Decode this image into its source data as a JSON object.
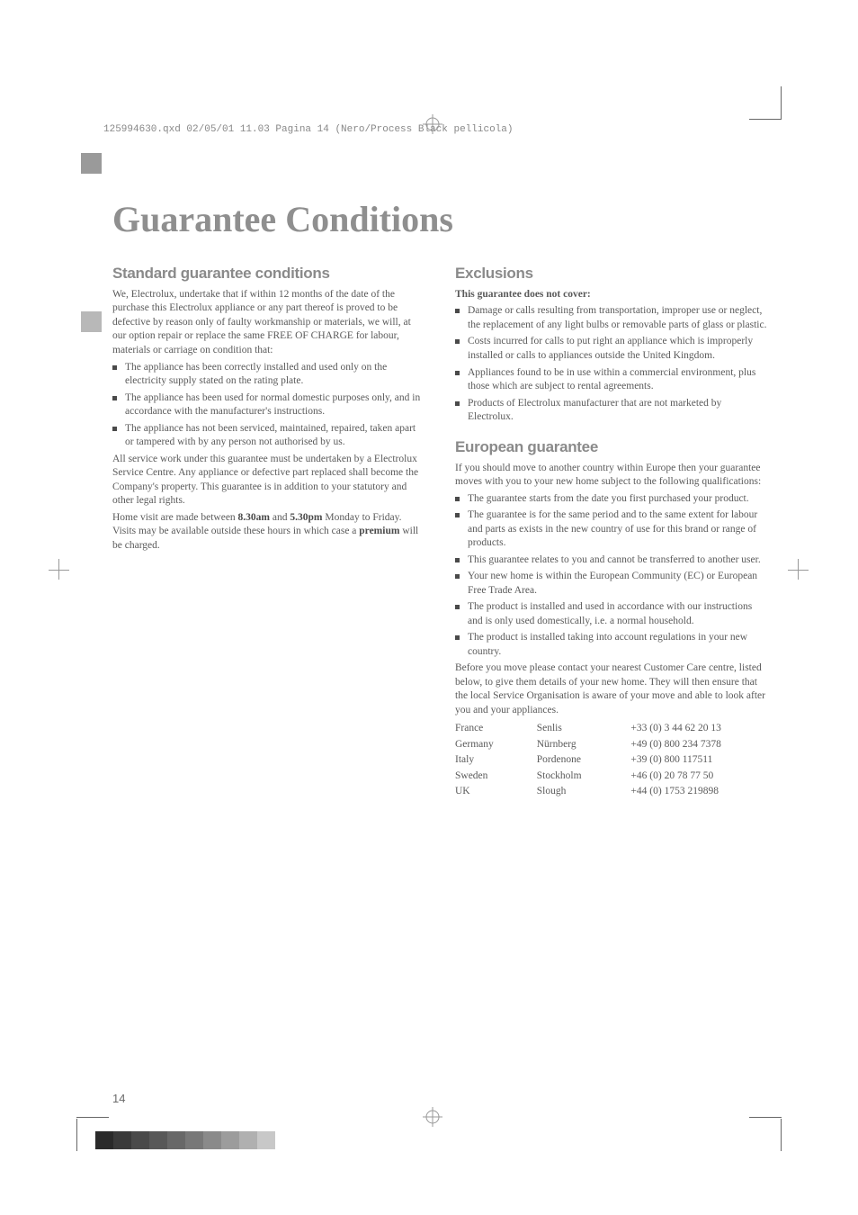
{
  "print_header": "125994630.qxd  02/05/01  11.03  Pagina 14   (Nero/Process Black pellicola)",
  "title": "Guarantee Conditions",
  "left": {
    "heading": "Standard guarantee conditions",
    "p1": "We, Electrolux, undertake that if within 12 months of the date of the purchase this Electrolux appliance or any part thereof is proved to be defective by reason only of faulty workmanship or materials, we will, at our option repair or replace the same FREE OF CHARGE for labour, materials or carriage on condition that:",
    "bullets": [
      "The appliance has been correctly installed and used only on the electricity supply stated on the rating plate.",
      "The appliance has been used for normal domestic purposes only, and in accordance with the manufacturer's instructions.",
      "The appliance has not been serviced, maintained, repaired, taken apart or tampered with by any person not authorised by us."
    ],
    "p2": "All service work under this guarantee must be undertaken by a Electrolux Service Centre. Any appliance or defective part replaced shall become the Company's property. This guarantee is in addition to your statutory and other legal rights.",
    "p3_a": "Home visit are made between ",
    "p3_b": "8.30am",
    "p3_c": " and ",
    "p3_d": "5.30pm",
    "p3_e": " Monday to Friday. Visits may be available outside these hours in which case a ",
    "p3_f": "premium",
    "p3_g": " will be charged."
  },
  "right": {
    "h_excl": "Exclusions",
    "excl_sub": "This guarantee does not cover:",
    "excl_bullets": [
      "Damage or calls resulting from transportation, improper use or neglect, the replacement of any light bulbs or removable parts of glass or plastic.",
      "Costs incurred for calls to put right an appliance which is improperly installed or calls to appliances outside the United Kingdom.",
      "Appliances found to be in use within a commercial environment, plus those which are subject to rental agreements.",
      "Products of Electrolux manufacturer that are not marketed by Electrolux."
    ],
    "h_eu": "European guarantee",
    "eu_p": "If you should move to another country within Europe then your guarantee moves with you to your new home subject to the following qualifications:",
    "eu_bullets": [
      "The guarantee starts from the date you first purchased your product.",
      "The guarantee is for the same period and to the same extent for labour and parts as exists in the new country of use for this brand or range of products.",
      "This guarantee relates to you and cannot be transferred to another user.",
      "Your new home is within the European Community (EC) or European Free Trade Area.",
      "The product is installed and used in accordance with our instructions and is only used domestically, i.e. a normal household.",
      "The product is installed taking into account regulations in your new country."
    ],
    "eu_p2": "Before you move please contact your nearest Customer Care centre, listed below, to give them details of your new home. They will then ensure that the local Service Organisation is aware of your move and able to look after you and your appliances.",
    "contacts": [
      [
        "France",
        "Senlis",
        "+33 (0) 3 44 62 20 13"
      ],
      [
        "Germany",
        "Nürnberg",
        "+49 (0) 800 234 7378"
      ],
      [
        "Italy",
        "Pordenone",
        "+39 (0) 800 117511"
      ],
      [
        "Sweden",
        "Stockholm",
        "+46 (0) 20 78 77 50"
      ],
      [
        "UK",
        "Slough",
        "+44 (0) 1753 219898"
      ]
    ]
  },
  "page_number": "14",
  "colorbar": [
    "#2a2a2a",
    "#3a3a3a",
    "#4a4a4a",
    "#585858",
    "#686868",
    "#787878",
    "#8a8a8a",
    "#9c9c9c",
    "#b0b0b0",
    "#c8c8c8"
  ]
}
